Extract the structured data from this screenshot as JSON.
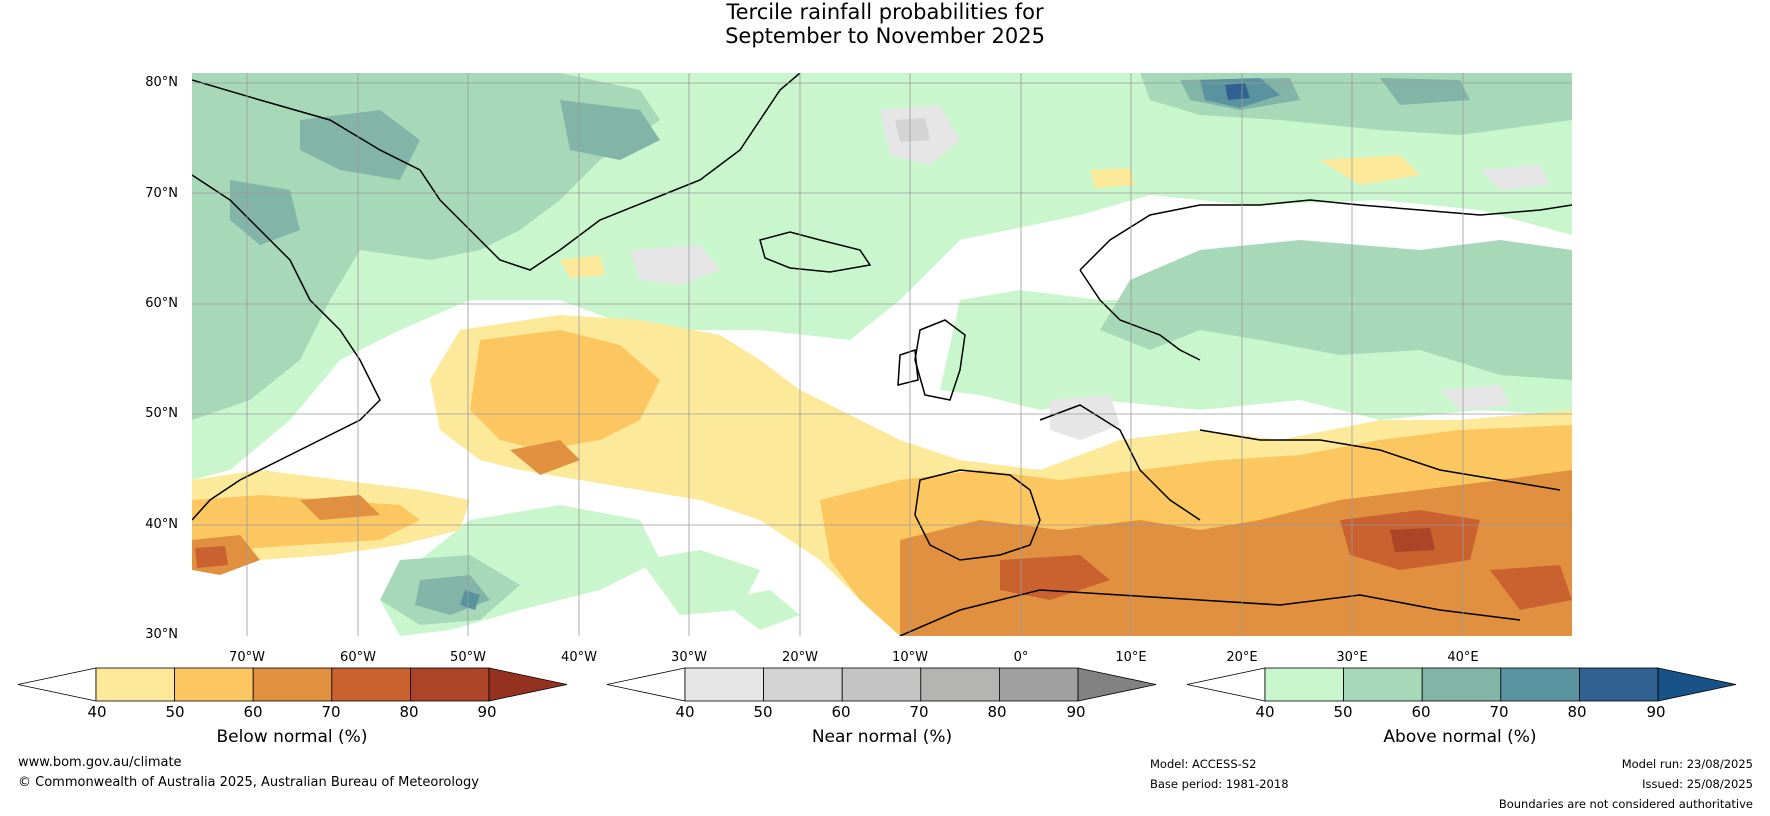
{
  "title": {
    "line1": "Tercile rainfall probabilities for",
    "line2": "September to November 2025"
  },
  "lat_labels": [
    "80°N",
    "70°N",
    "60°N",
    "50°N",
    "40°N",
    "30°N"
  ],
  "lon_labels": [
    "70°W",
    "60°W",
    "50°W",
    "40°W",
    "30°W",
    "20°W",
    "10°W",
    "0°",
    "10°E",
    "20°E",
    "30°E",
    "40°E"
  ],
  "legends": [
    {
      "title": "Below normal (%)",
      "ticks": [
        "40",
        "50",
        "60",
        "70",
        "80",
        "90"
      ],
      "colors": [
        "#ffffff",
        "#fde99a",
        "#fcc661",
        "#e0903f",
        "#c9622f",
        "#ac4528",
        "#94321f"
      ]
    },
    {
      "title": "Near normal (%)",
      "ticks": [
        "40",
        "50",
        "60",
        "70",
        "80",
        "90"
      ],
      "colors": [
        "#ffffff",
        "#e6e6e6",
        "#d4d4d4",
        "#c4c4c4",
        "#b4b5b3",
        "#a0a0a0",
        "#828282"
      ]
    },
    {
      "title": "Above normal (%)",
      "ticks": [
        "40",
        "50",
        "60",
        "70",
        "80",
        "90"
      ],
      "colors": [
        "#ffffff",
        "#c9f6cc",
        "#a7d8b8",
        "#82b5a8",
        "#5a93a0",
        "#306190",
        "#185287"
      ]
    }
  ],
  "footer": {
    "website": "www.bom.gov.au/climate",
    "copyright": "© Commonwealth of Australia 2025, Australian Bureau of Meteorology",
    "model": "Model: ACCESS-S2",
    "base_period": "Base period: 1981-2018",
    "model_run": "Model run: 23/08/2025",
    "issued": "Issued: 25/08/2025",
    "disclaimer": "Boundaries are not considered authoritative"
  }
}
